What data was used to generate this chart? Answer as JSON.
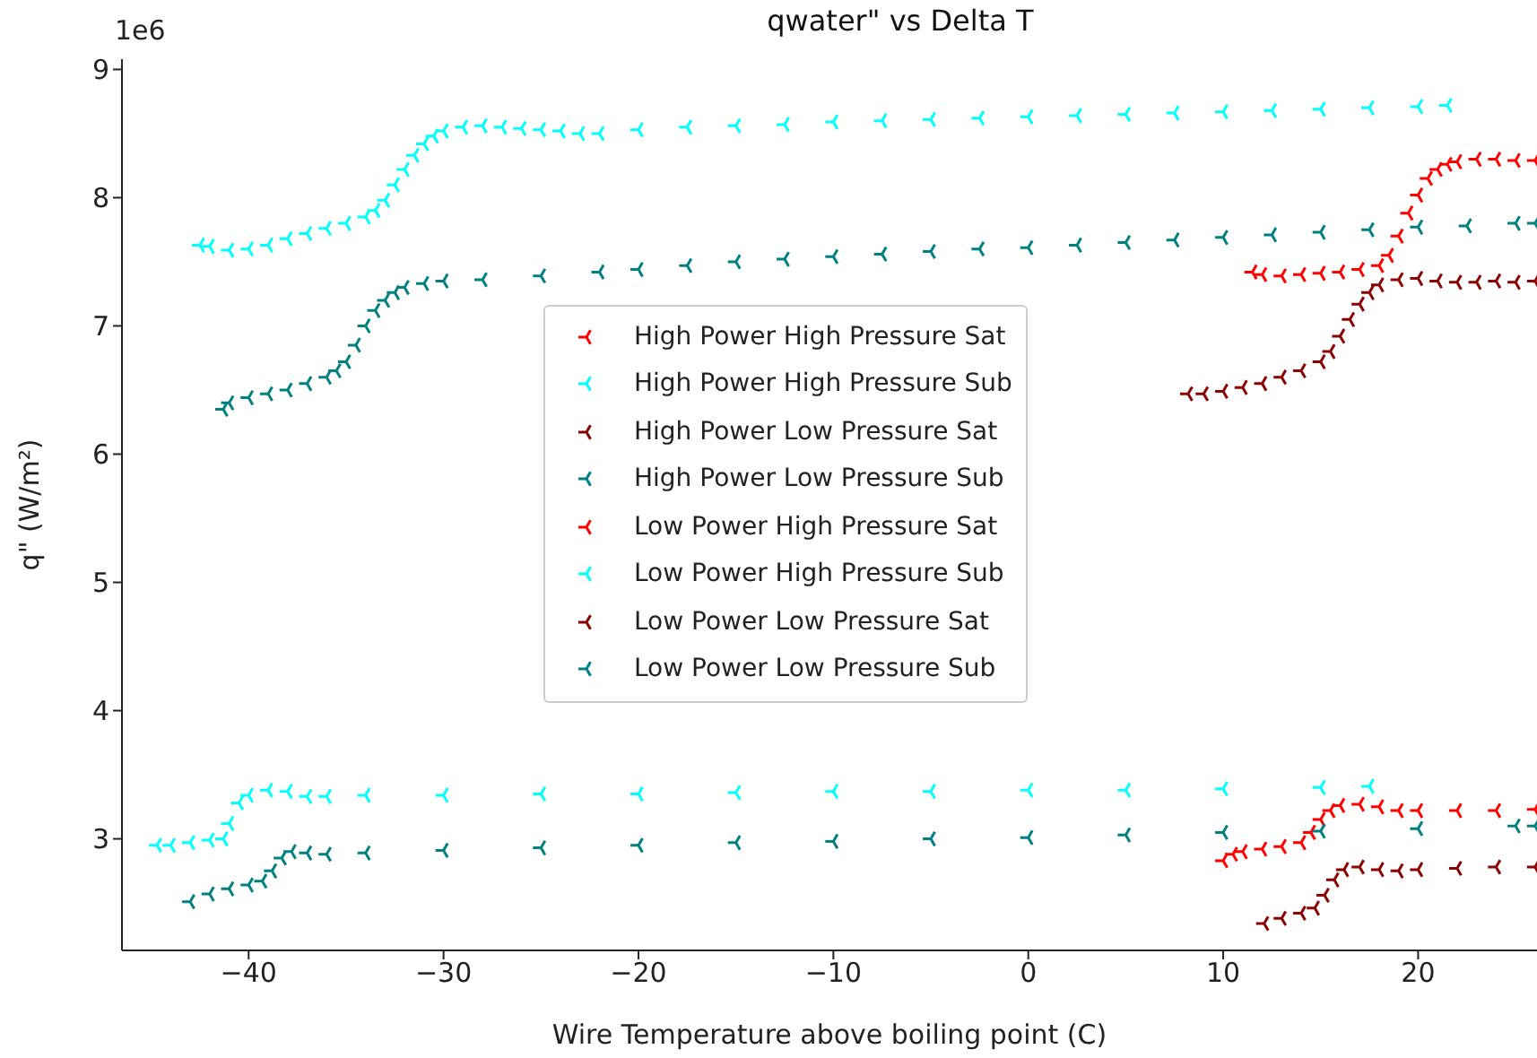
{
  "chart_data": {
    "type": "scatter",
    "title": "qwater\" vs Delta T",
    "xlabel": "Wire Temperature above boiling point (C)",
    "ylabel": "q\" (W/m²)",
    "annotations": [
      "1e6"
    ],
    "xlim": [
      -46.5,
      26.1
    ],
    "xticks": [
      -40,
      -30,
      -20,
      -10,
      0,
      10,
      20
    ],
    "ylim": [
      2.13,
      9.08
    ],
    "yticks": [
      3,
      4,
      5,
      6,
      7,
      8,
      9
    ],
    "marker": "cross",
    "legend": "center",
    "grid": false,
    "series": [
      {
        "name": "High Power High Pressure Sat",
        "color": "#ff0000",
        "x": [
          11.5,
          12,
          13,
          14,
          15,
          16,
          17,
          18,
          18.5,
          19,
          19.5,
          20,
          20.5,
          21,
          21.5,
          22,
          23,
          24,
          25,
          26
        ],
        "values": [
          7.42,
          7.4,
          7.39,
          7.4,
          7.41,
          7.42,
          7.44,
          7.47,
          7.55,
          7.7,
          7.88,
          8.02,
          8.15,
          8.22,
          8.26,
          8.28,
          8.3,
          8.3,
          8.29,
          8.29
        ]
      },
      {
        "name": "High Power High Pressure Sub",
        "color": "#00ffff",
        "x": [
          -42.5,
          -42,
          -41,
          -40,
          -39,
          -38,
          -37,
          -36,
          -35,
          -34,
          -33.5,
          -33,
          -32.5,
          -32,
          -31.5,
          -31,
          -30.5,
          -30,
          -29,
          -28,
          -27,
          -26,
          -25,
          -24,
          -23,
          -22,
          -20,
          -17.5,
          -15,
          -12.5,
          -10,
          -7.5,
          -5,
          -2.5,
          0,
          2.5,
          5,
          7.5,
          10,
          12.5,
          15,
          17.5,
          20,
          21.5
        ],
        "values": [
          7.63,
          7.62,
          7.59,
          7.6,
          7.63,
          7.68,
          7.72,
          7.76,
          7.8,
          7.85,
          7.9,
          7.98,
          8.1,
          8.22,
          8.33,
          8.42,
          8.48,
          8.52,
          8.55,
          8.56,
          8.55,
          8.54,
          8.53,
          8.52,
          8.5,
          8.5,
          8.53,
          8.55,
          8.56,
          8.57,
          8.59,
          8.6,
          8.61,
          8.62,
          8.63,
          8.64,
          8.65,
          8.66,
          8.67,
          8.68,
          8.69,
          8.7,
          8.71,
          8.72
        ]
      },
      {
        "name": "High Power Low Pressure Sat",
        "color": "#8b0000",
        "x": [
          8.2,
          9,
          10,
          11,
          12,
          13,
          14,
          15,
          15.5,
          16,
          16.5,
          17,
          17.5,
          18,
          19,
          20,
          21,
          22,
          23,
          24,
          25,
          26
        ],
        "values": [
          6.47,
          6.47,
          6.49,
          6.52,
          6.55,
          6.6,
          6.65,
          6.72,
          6.8,
          6.92,
          7.05,
          7.17,
          7.26,
          7.32,
          7.36,
          7.37,
          7.35,
          7.34,
          7.34,
          7.35,
          7.34,
          7.35
        ]
      },
      {
        "name": "High Power Low Pressure Sub",
        "color": "#008080",
        "x": [
          -41.3,
          -41,
          -40,
          -39,
          -38,
          -37,
          -36,
          -35.5,
          -35,
          -34.5,
          -34,
          -33.5,
          -33,
          -32.5,
          -32,
          -31,
          -30,
          -28,
          -25,
          -22,
          -20,
          -17.5,
          -15,
          -12.5,
          -10,
          -7.5,
          -5,
          -2.5,
          0,
          2.5,
          5,
          7.5,
          10,
          12.5,
          15,
          17.5,
          20,
          22.5,
          25,
          26
        ],
        "values": [
          6.35,
          6.4,
          6.44,
          6.47,
          6.5,
          6.55,
          6.6,
          6.65,
          6.72,
          6.85,
          7.0,
          7.12,
          7.2,
          7.26,
          7.3,
          7.33,
          7.35,
          7.36,
          7.39,
          7.42,
          7.44,
          7.47,
          7.5,
          7.52,
          7.54,
          7.56,
          7.58,
          7.6,
          7.61,
          7.63,
          7.65,
          7.67,
          7.69,
          7.71,
          7.73,
          7.75,
          7.77,
          7.78,
          7.8,
          7.8
        ]
      },
      {
        "name": "Low Power High Pressure Sat",
        "color": "#ff0000",
        "x": [
          10,
          10.5,
          11,
          12,
          13,
          14,
          14.5,
          15,
          15.5,
          16,
          17,
          18,
          19,
          20,
          22,
          24,
          26
        ],
        "values": [
          2.83,
          2.88,
          2.9,
          2.92,
          2.94,
          2.97,
          3.05,
          3.15,
          3.22,
          3.26,
          3.27,
          3.25,
          3.22,
          3.22,
          3.22,
          3.22,
          3.23
        ]
      },
      {
        "name": "Low Power High Pressure Sub",
        "color": "#00ffff",
        "x": [
          -44.7,
          -44,
          -43,
          -42,
          -41.3,
          -41,
          -40.5,
          -40,
          -39,
          -38,
          -37,
          -36,
          -34,
          -30,
          -25,
          -20,
          -15,
          -10,
          -5,
          0,
          5,
          10,
          15,
          17.5
        ],
        "values": [
          2.95,
          2.95,
          2.97,
          2.99,
          3.0,
          3.12,
          3.28,
          3.34,
          3.38,
          3.37,
          3.33,
          3.33,
          3.34,
          3.34,
          3.35,
          3.35,
          3.36,
          3.37,
          3.37,
          3.38,
          3.38,
          3.39,
          3.4,
          3.41
        ]
      },
      {
        "name": "Low Power Low Pressure Sat",
        "color": "#8b0000",
        "x": [
          12.1,
          13,
          14,
          14.7,
          15.2,
          15.7,
          16.2,
          17,
          18,
          19,
          20,
          22,
          24,
          26
        ],
        "values": [
          2.34,
          2.38,
          2.42,
          2.46,
          2.56,
          2.68,
          2.76,
          2.78,
          2.76,
          2.75,
          2.76,
          2.77,
          2.78,
          2.78
        ]
      },
      {
        "name": "Low Power Low Pressure Sub",
        "color": "#008080",
        "x": [
          -43,
          -42,
          -41,
          -40,
          -39.3,
          -38.8,
          -38.3,
          -37.8,
          -37,
          -36,
          -34,
          -30,
          -25,
          -20,
          -15,
          -10,
          -5,
          0,
          5,
          10,
          15,
          20,
          25,
          26
        ],
        "values": [
          2.51,
          2.57,
          2.61,
          2.64,
          2.67,
          2.75,
          2.85,
          2.9,
          2.89,
          2.88,
          2.89,
          2.91,
          2.93,
          2.95,
          2.97,
          2.98,
          3.0,
          3.01,
          3.03,
          3.05,
          3.06,
          3.08,
          3.1,
          3.1
        ]
      }
    ]
  }
}
